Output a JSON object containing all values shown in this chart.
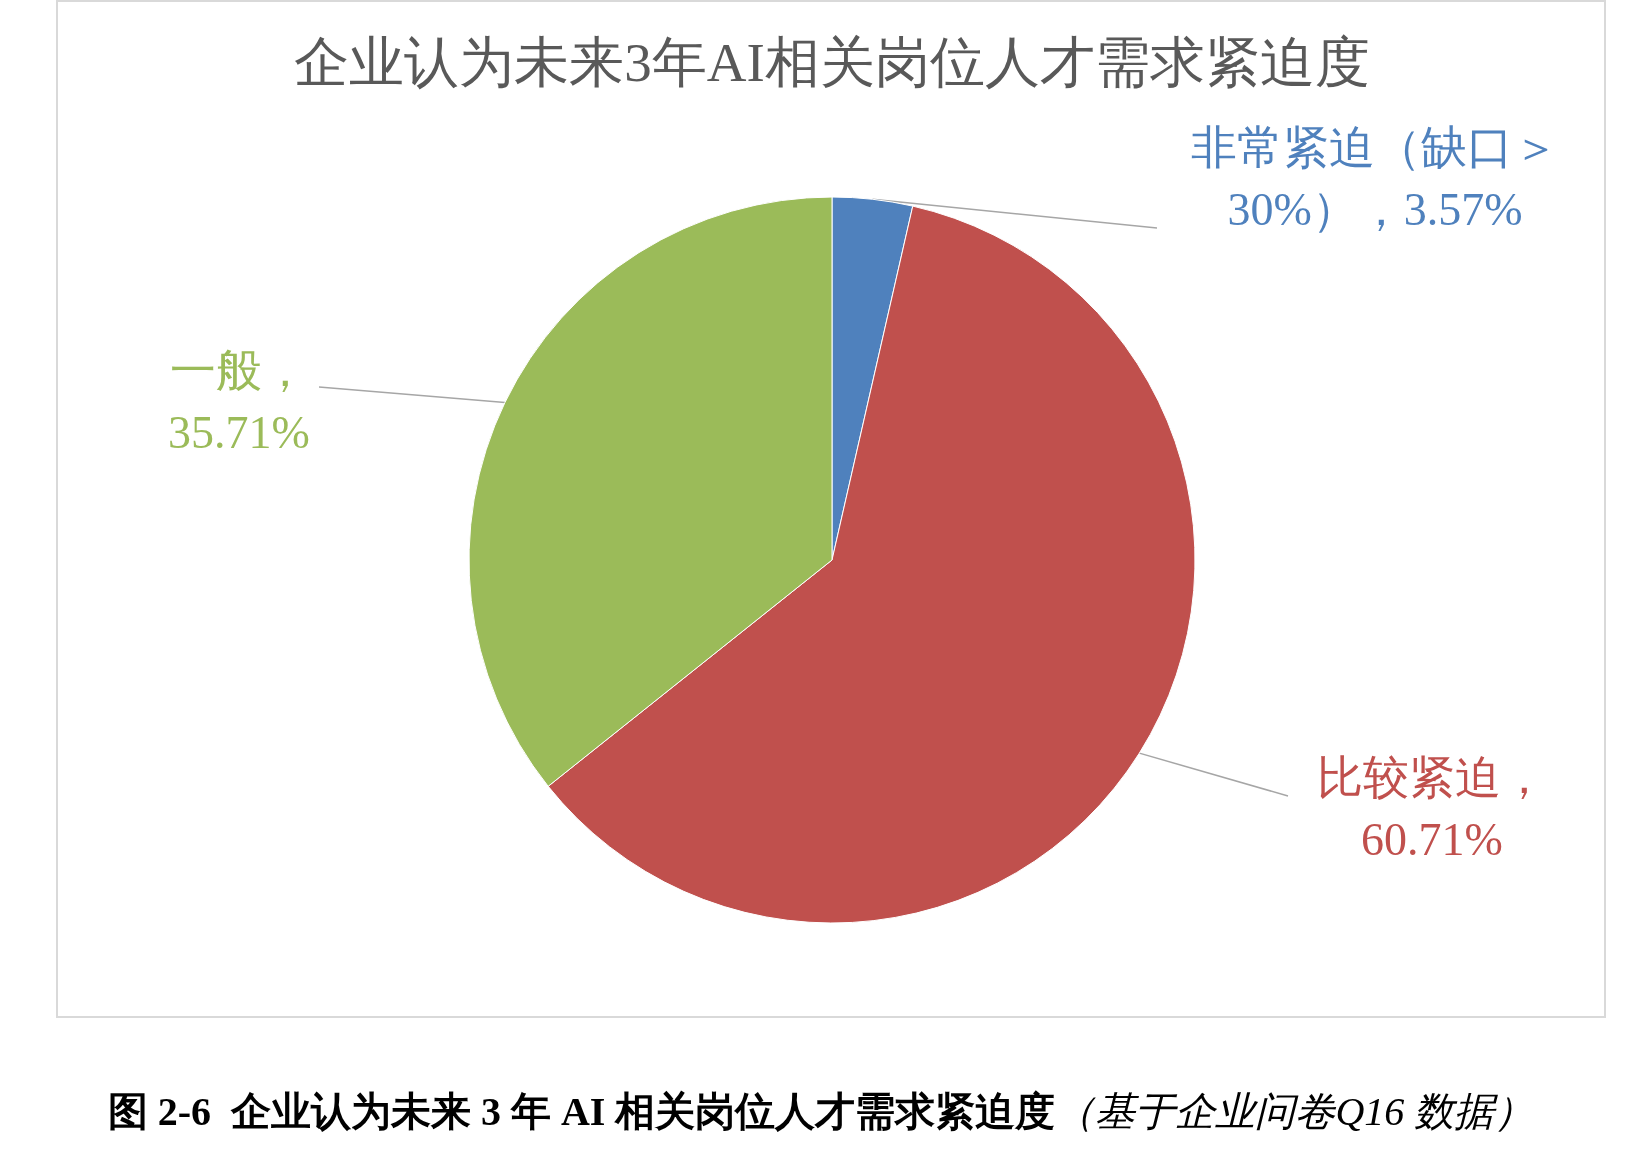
{
  "chart_data": {
    "type": "pie",
    "title": "企业认为未来3年AI相关岗位人才需求紧迫度",
    "categories": [
      "非常紧迫（缺口＞30%）",
      "比较紧迫",
      "一般"
    ],
    "values": [
      3.57,
      60.71,
      35.71
    ],
    "colors": [
      "#4f81bd",
      "#c0504d",
      "#9bbb59"
    ],
    "value_labels": [
      "，3.57%",
      "，60.71%",
      "，35.71%"
    ],
    "legend": false,
    "annotations": [
      "图 2-6  企业认为未来 3 年 AI 相关岗位人才需求紧迫度",
      "（基于企业问卷Q16 数据）"
    ]
  }
}
